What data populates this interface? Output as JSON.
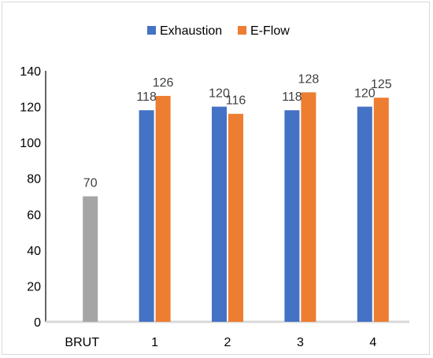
{
  "chart_data": {
    "type": "bar",
    "categories": [
      "BRUT",
      "1",
      "2",
      "3",
      "4"
    ],
    "single": {
      "category_index": 0,
      "value": 70,
      "color": "#a5a5a5"
    },
    "series": [
      {
        "name": "Exhaustion",
        "color": "#4472c4",
        "values": [
          null,
          118,
          120,
          118,
          120
        ]
      },
      {
        "name": "E-Flow",
        "color": "#ed7d31",
        "values": [
          null,
          126,
          116,
          128,
          125
        ]
      }
    ],
    "yticks": [
      "0",
      "20",
      "40",
      "60",
      "80",
      "100",
      "120",
      "140"
    ],
    "ylim": [
      0,
      140
    ],
    "legend_position": "top-center",
    "grid": false
  }
}
